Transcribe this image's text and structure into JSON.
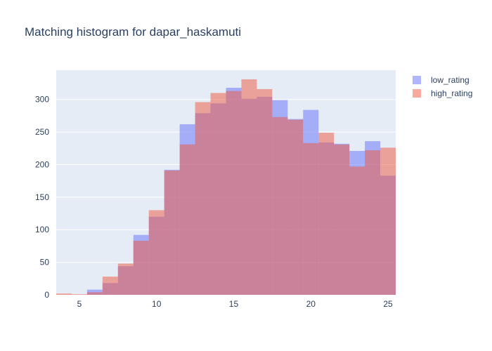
{
  "chart_data": {
    "type": "bar",
    "mode": "overlay histogram",
    "title": "Matching histogram for dapar_haskamuti",
    "xlabel": "",
    "ylabel": "",
    "xlim": [
      3.5,
      25.5
    ],
    "ylim": [
      0,
      345
    ],
    "x_ticks": [
      5,
      10,
      15,
      20,
      25
    ],
    "y_ticks": [
      0,
      50,
      100,
      150,
      200,
      250,
      300
    ],
    "bin_width": 1,
    "bin_centers": [
      4,
      5,
      6,
      7,
      8,
      9,
      10,
      11,
      12,
      13,
      14,
      15,
      16,
      17,
      18,
      19,
      20,
      21,
      22,
      23,
      24,
      25
    ],
    "series": [
      {
        "name": "low_rating",
        "color": "#636efa",
        "opacity": 0.5,
        "values": [
          0,
          0,
          8,
          18,
          44,
          92,
          120,
          192,
          262,
          279,
          294,
          318,
          301,
          304,
          299,
          270,
          284,
          234,
          232,
          221,
          236,
          183
        ]
      },
      {
        "name": "high_rating",
        "color": "#ef553b",
        "opacity": 0.5,
        "values": [
          2,
          1,
          4,
          28,
          48,
          83,
          130,
          191,
          231,
          296,
          310,
          313,
          331,
          316,
          273,
          269,
          233,
          249,
          231,
          197,
          222,
          226
        ]
      }
    ],
    "grid": true,
    "legend": "top-right"
  }
}
